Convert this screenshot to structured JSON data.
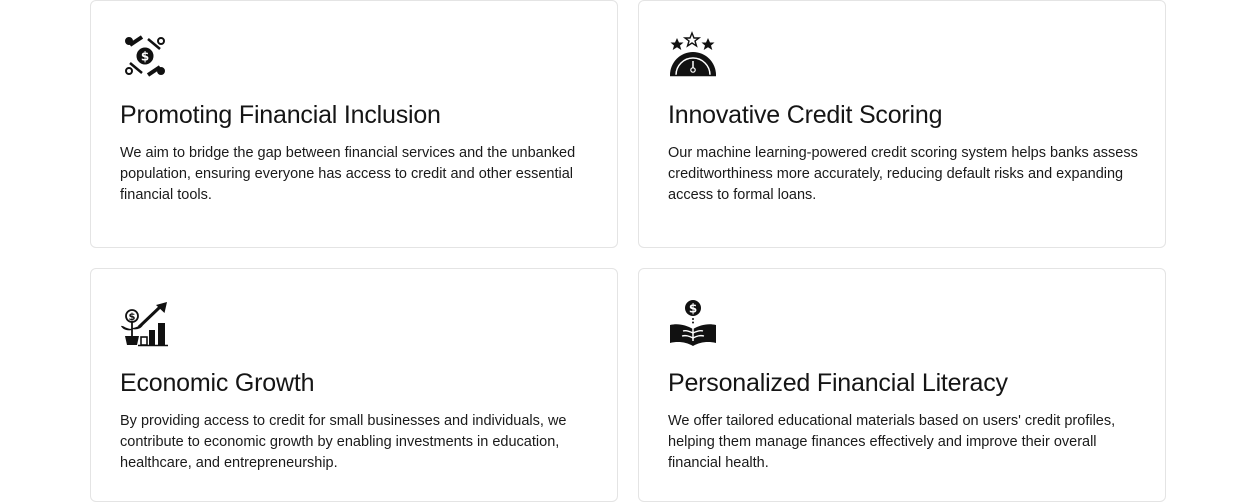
{
  "cards": [
    {
      "icon": "financial-inclusion-icon",
      "title": "Promoting Financial Inclusion",
      "text": "We aim to bridge the gap between financial services and the unbanked population, ensuring everyone has access to credit and other essential financial tools."
    },
    {
      "icon": "credit-score-gauge-icon",
      "title": "Innovative Credit Scoring",
      "text": "Our machine learning-powered credit scoring system helps banks assess creditworthiness more accurately, reducing default risks and expanding access to formal loans."
    },
    {
      "icon": "growth-chart-icon",
      "title": "Economic Growth",
      "text": "By providing access to credit for small businesses and individuals, we contribute to economic growth by enabling investments in education, healthcare, and entrepreneurship."
    },
    {
      "icon": "financial-literacy-book-icon",
      "title": "Personalized Financial Literacy",
      "text": "We offer tailored educational materials based on users' credit profiles, helping them manage finances effectively and improve their overall financial health."
    }
  ]
}
